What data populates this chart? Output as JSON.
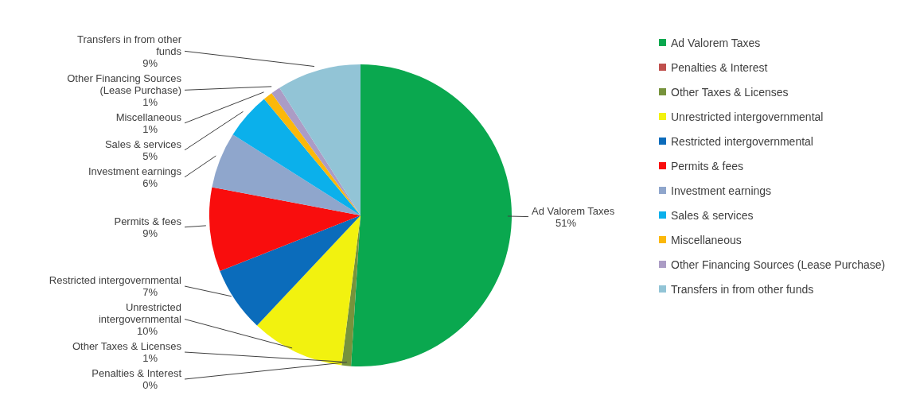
{
  "chart_data": {
    "type": "pie",
    "categories": [
      "Ad Valorem Taxes",
      "Penalties & Interest",
      "Other Taxes & Licenses",
      "Unrestricted intergovernmental",
      "Restricted intergovernmental",
      "Permits & fees",
      "Investment earnings",
      "Sales & services",
      "Miscellaneous",
      "Other Financing Sources (Lease Purchase)",
      "Transfers in from other funds"
    ],
    "values": [
      51,
      0,
      1,
      10,
      7,
      9,
      6,
      5,
      1,
      1,
      9
    ],
    "value_labels": [
      "51%",
      "0%",
      "1%",
      "10%",
      "7%",
      "9%",
      "6%",
      "5%",
      "1%",
      "1%",
      "9%"
    ],
    "colors": [
      "#0aa84f",
      "#c0504d",
      "#77933c",
      "#f2f20f",
      "#0b6cbb",
      "#f90d0d",
      "#8fa6cc",
      "#0bb0eb",
      "#fbb80a",
      "#ab9cc5",
      "#92c4d6"
    ],
    "legend": "right"
  }
}
